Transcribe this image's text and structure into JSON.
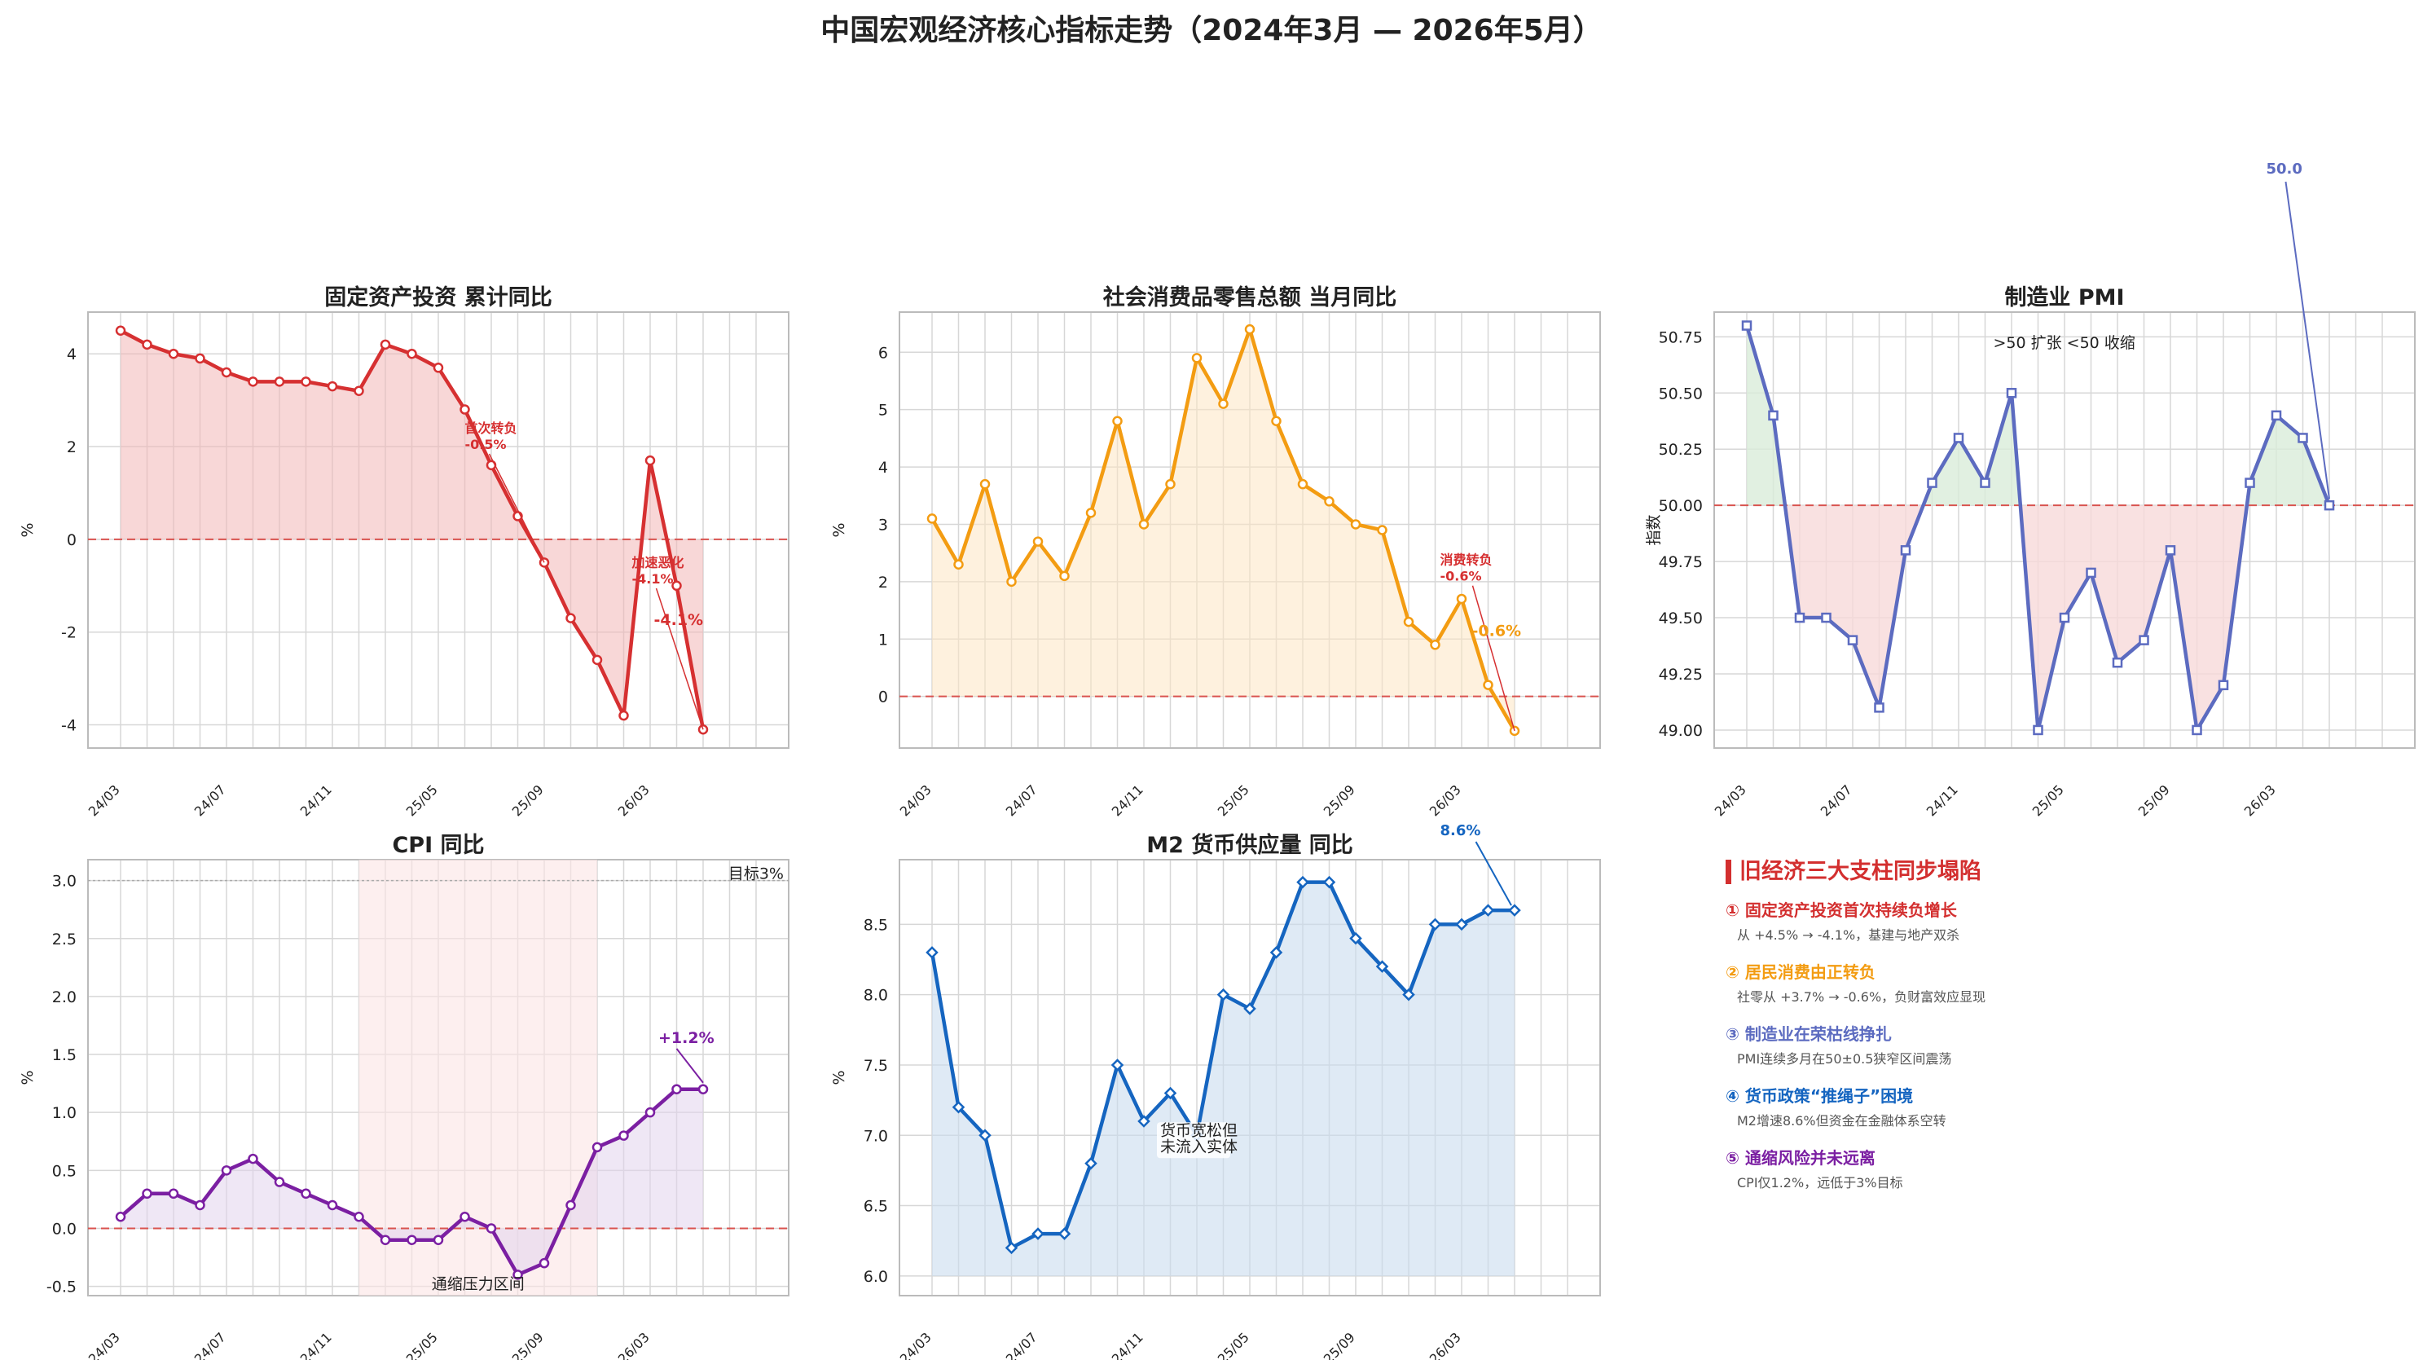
{
  "title": "中国宏观经济核心指标走势（2024年3月 — 2026年5月）",
  "xtick_labels": [
    "24/03",
    "24/07",
    "24/11",
    "25/05",
    "25/09",
    "26/03"
  ],
  "chart_data": [
    {
      "id": "fai",
      "type": "line",
      "title": "固定资产投资 累计同比",
      "ylabel": "%",
      "color": "#d63031",
      "fill_mode": "zero",
      "fill_color": "#f3b7b7",
      "marker": "circle",
      "ylim": [
        -4.5,
        4.9
      ],
      "yticks": [
        -4,
        -2,
        0,
        2,
        4
      ],
      "ref_line": 0,
      "x": [
        "24/03",
        "24/04",
        "24/05",
        "24/06",
        "24/07",
        "24/08",
        "24/09",
        "24/10",
        "24/11",
        "24/12",
        "25/01",
        "25/03",
        "25/04",
        "25/05",
        "25/06",
        "25/07",
        "25/08",
        "25/09",
        "25/10",
        "25/11",
        "25/12",
        "26/02",
        "26/03",
        "26/04",
        "26/05"
      ],
      "values": [
        4.5,
        4.2,
        4.0,
        3.9,
        3.6,
        3.4,
        3.4,
        3.4,
        3.3,
        3.2,
        4.2,
        4.0,
        3.7,
        2.8,
        1.6,
        0.5,
        -0.5,
        -1.7,
        -2.6,
        -3.8,
        1.7,
        -1.0,
        -4.1,
        null,
        null
      ],
      "annotations": [
        "首次转负",
        "-0.5%",
        "加速恶化",
        "-4.1%",
        "-4.1%"
      ]
    },
    {
      "id": "retail",
      "type": "line",
      "title": "社会消费品零售总额 当月同比",
      "ylabel": "%",
      "color": "#f39c12",
      "fill_mode": "zero",
      "fill_color": "#fde6c2",
      "marker": "circle",
      "ylim": [
        -0.9,
        6.7
      ],
      "yticks": [
        0,
        1,
        2,
        3,
        4,
        5,
        6
      ],
      "ref_line": 0,
      "x": [
        "24/03",
        "24/04",
        "24/05",
        "24/06",
        "24/07",
        "24/08",
        "24/09",
        "24/10",
        "24/11",
        "24/12",
        "25/01",
        "25/03",
        "25/04",
        "25/05",
        "25/06",
        "25/07",
        "25/08",
        "25/09",
        "25/10",
        "25/11",
        "25/12",
        "26/02",
        "26/03",
        "26/04",
        "26/05"
      ],
      "values": [
        3.1,
        2.3,
        3.7,
        2.0,
        2.7,
        2.1,
        3.2,
        4.8,
        3.0,
        3.7,
        5.9,
        5.1,
        6.4,
        4.8,
        3.7,
        3.4,
        3.0,
        2.9,
        1.3,
        0.9,
        1.7,
        0.2,
        -0.6,
        null,
        null
      ],
      "annotations": [
        "消费转负",
        "-0.6%",
        "-0.6%"
      ]
    },
    {
      "id": "pmi",
      "type": "line",
      "title": "制造业 PMI",
      "ylabel": "指数",
      "color": "#5c6bc0",
      "fill_mode": "pmi",
      "fill_up": "#d9ecd9",
      "fill_down": "#f8d9d9",
      "marker": "square",
      "ylim": [
        48.92,
        50.86
      ],
      "yticks": [
        49.0,
        49.25,
        49.5,
        49.75,
        50.0,
        50.25,
        50.5,
        50.75
      ],
      "ref_line": 50,
      "x": [
        "24/03",
        "24/04",
        "24/05",
        "24/06",
        "24/07",
        "24/08",
        "24/09",
        "24/10",
        "24/11",
        "24/12",
        "25/01",
        "25/03",
        "25/04",
        "25/05",
        "25/06",
        "25/07",
        "25/08",
        "25/09",
        "25/10",
        "25/11",
        "25/12",
        "26/02",
        "26/03",
        "26/04",
        "26/05"
      ],
      "values": [
        50.8,
        50.4,
        49.5,
        49.5,
        49.4,
        49.1,
        49.8,
        50.1,
        50.3,
        50.1,
        50.5,
        49.0,
        49.5,
        49.7,
        49.3,
        49.4,
        49.8,
        49.0,
        49.2,
        50.1,
        50.4,
        50.3,
        50.0,
        null,
        null
      ],
      "annotations": [
        ">50 扩张",
        ">50 扩张  <50 收缩",
        "50.0"
      ]
    },
    {
      "id": "cpi",
      "type": "line",
      "title": "CPI 同比",
      "ylabel": "%",
      "color": "#7b1fa2",
      "fill_mode": "zero",
      "fill_color": "#e1d3ec",
      "marker": "circle",
      "ylim": [
        -0.58,
        3.18
      ],
      "yticks": [
        -0.5,
        0.0,
        0.5,
        1.0,
        1.5,
        2.0,
        2.5,
        3.0
      ],
      "ref_line": 0,
      "target_line": 3.0,
      "shade_range": [
        "24/12",
        "25/09"
      ],
      "x": [
        "24/03",
        "24/04",
        "24/05",
        "24/06",
        "24/07",
        "24/08",
        "24/09",
        "24/10",
        "24/11",
        "24/12",
        "25/01",
        "25/02",
        "25/03",
        "25/04",
        "25/05",
        "25/06",
        "25/07",
        "25/08",
        "25/09",
        "25/10",
        "25/11",
        "25/12",
        "26/01",
        "26/02",
        "26/03"
      ],
      "values": [
        0.1,
        0.3,
        0.3,
        0.2,
        0.5,
        0.6,
        0.4,
        0.3,
        0.2,
        0.1,
        -0.1,
        -0.1,
        -0.1,
        0.1,
        0.0,
        -0.4,
        -0.3,
        0.2,
        0.7,
        0.8,
        1.0,
        1.2,
        1.2,
        null,
        null
      ],
      "annotations": [
        "目标3%",
        "通缩压力区间",
        "+1.2%"
      ]
    },
    {
      "id": "m2",
      "type": "line",
      "title": "M2 货币供应量 同比",
      "ylabel": "%",
      "color": "#1565c0",
      "fill_mode": "base",
      "fill_color": "#c9dcee",
      "marker": "diamond",
      "ylim": [
        5.86,
        8.96
      ],
      "yticks": [
        6.0,
        6.5,
        7.0,
        7.5,
        8.0,
        8.5
      ],
      "ref_line": null,
      "x": [
        "24/03",
        "24/04",
        "24/05",
        "24/06",
        "24/07",
        "24/08",
        "24/09",
        "24/10",
        "24/11",
        "24/12",
        "25/01",
        "25/03",
        "25/04",
        "25/05",
        "25/06",
        "25/07",
        "25/08",
        "25/09",
        "25/10",
        "25/11",
        "25/12",
        "26/02",
        "26/03",
        "26/04",
        "26/05"
      ],
      "values": [
        8.3,
        7.2,
        7.0,
        6.2,
        6.3,
        6.3,
        6.8,
        7.5,
        7.1,
        7.3,
        7.0,
        8.0,
        7.9,
        8.3,
        8.8,
        8.8,
        8.4,
        8.2,
        8.0,
        8.5,
        8.5,
        8.6,
        8.6,
        null,
        null
      ],
      "annotations": [
        "货币宽松但",
        "未流入实体",
        "8.6%"
      ]
    }
  ],
  "summary": {
    "title": "旧经济三大支柱同步塌陷",
    "items": [
      {
        "head": "① 固定资产投资首次持续负增长",
        "desc": "从 +4.5% → -4.1%，基建与地产双杀",
        "color": "#d32f2f"
      },
      {
        "head": "② 居民消费由正转负",
        "desc": "社零从 +3.7% → -0.6%，负财富效应显现",
        "color": "#f39c12"
      },
      {
        "head": "③ 制造业在荣枯线挣扎",
        "desc": "PMI连续多月在50±0.5狭窄区间震荡",
        "color": "#5c6bc0"
      },
      {
        "head": "④ 货币政策“推绳子”困境",
        "desc": "M2增速8.6%但资金在金融体系空转",
        "color": "#1565c0"
      },
      {
        "head": "⑤ 通缩风险并未远离",
        "desc": "CPI仅1.2%，远低于3%目标",
        "color": "#7b1fa2"
      }
    ]
  }
}
